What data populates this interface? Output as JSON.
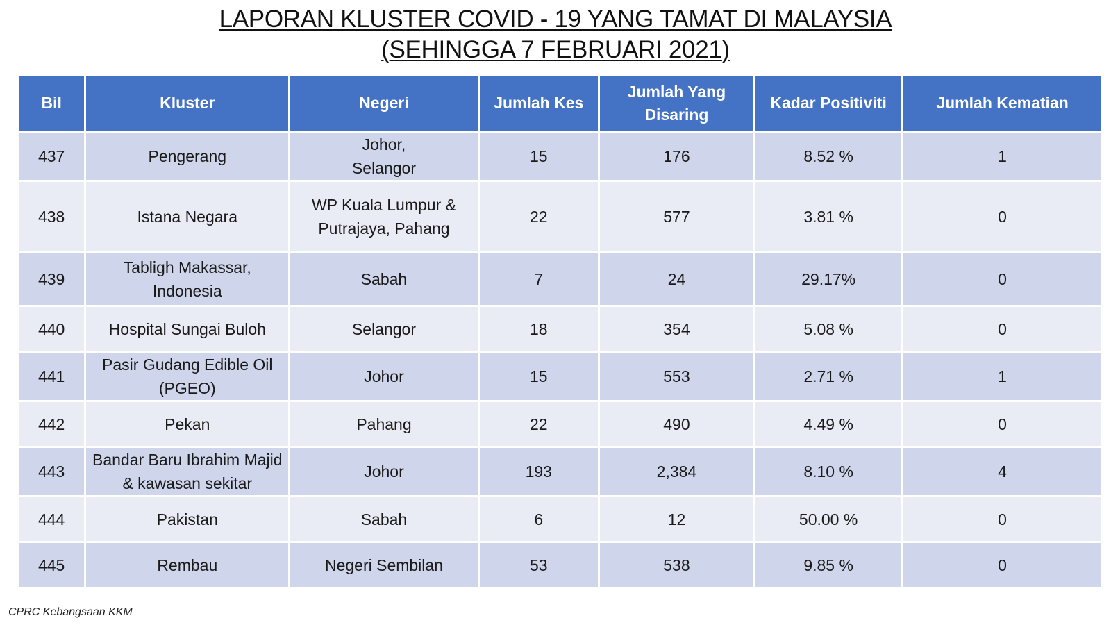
{
  "title": {
    "line1": "LAPORAN KLUSTER COVID - 19 YANG TAMAT DI MALAYSIA",
    "line2": "(SEHINGGA 7 FEBRUARI 2021)"
  },
  "table": {
    "headers": [
      "Bil",
      "Kluster",
      "Negeri",
      "Jumlah Kes",
      "Jumlah Yang Disaring",
      "Kadar Positiviti",
      "Jumlah Kematian"
    ],
    "rows": [
      [
        "437",
        "Pengerang",
        "Johor, Selangor",
        "15",
        "176",
        "8.52 %",
        "1"
      ],
      [
        "438",
        "Istana Negara",
        "WP Kuala Lumpur & Putrajaya, Pahang",
        "22",
        "577",
        "3.81 %",
        "0"
      ],
      [
        "439",
        "Tabligh Makassar, Indonesia",
        "Sabah",
        "7",
        "24",
        "29.17%",
        "0"
      ],
      [
        "440",
        "Hospital Sungai Buloh",
        "Selangor",
        "18",
        "354",
        "5.08 %",
        "0"
      ],
      [
        "441",
        "Pasir Gudang Edible Oil (PGEO)",
        "Johor",
        "15",
        "553",
        "2.71 %",
        "1"
      ],
      [
        "442",
        "Pekan",
        "Pahang",
        "22",
        "490",
        "4.49 %",
        "0"
      ],
      [
        "443",
        "Bandar Baru Ibrahim Majid & kawasan sekitar",
        "Johor",
        "193",
        "2,384",
        "8.10 %",
        "4"
      ],
      [
        "444",
        "Pakistan",
        "Sabah",
        "6",
        "12",
        "50.00 %",
        "0"
      ],
      [
        "445",
        "Rembau",
        "Negeri Sembilan",
        "53",
        "538",
        "9.85 %",
        "0"
      ]
    ]
  },
  "footer": "CPRC Kebangsaan KKM",
  "colors": {
    "header_bg": "#4472c4",
    "row_dark": "#cfd5ea",
    "row_light": "#e9ebf5"
  }
}
